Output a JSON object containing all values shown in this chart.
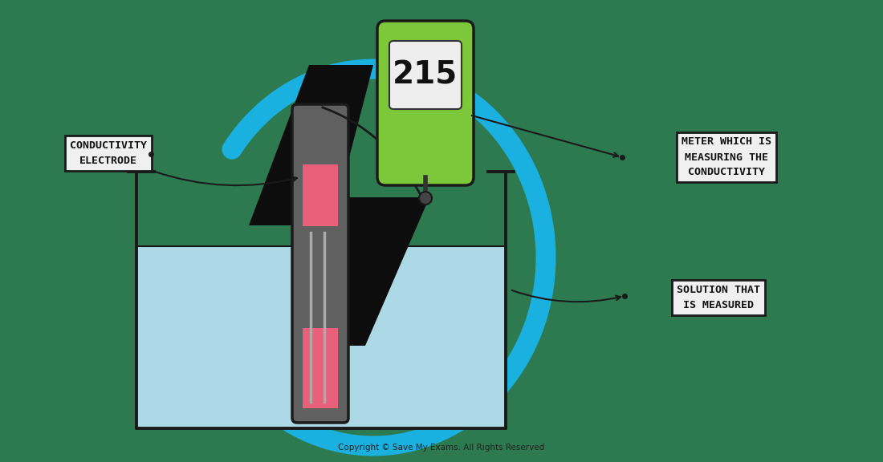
{
  "bg_color": "#2d7a50",
  "water_color": "#add8e6",
  "beaker_outline": "#1a1a1a",
  "electrode_body": "#606060",
  "electrode_red": "#e8607a",
  "meter_green": "#7dc83a",
  "meter_screen_bg": "#eeeeee",
  "meter_display": "215",
  "lightning_color": "#0d0d0d",
  "arc_color": "#1ab0e0",
  "arc_linewidth": 18,
  "label_bg": "#f0f0f0",
  "label_outline": "#1a1a1a",
  "copyright": "Copyright © Save My Exams. All Rights Reserved",
  "label_electrode": "CONDUCTIVITY\nELECTRODE",
  "label_meter": "METER WHICH IS\nMEASURING THE\nCONDUCTIVITY",
  "label_solution": "SOLUTION THAT\nIS MEASURED"
}
